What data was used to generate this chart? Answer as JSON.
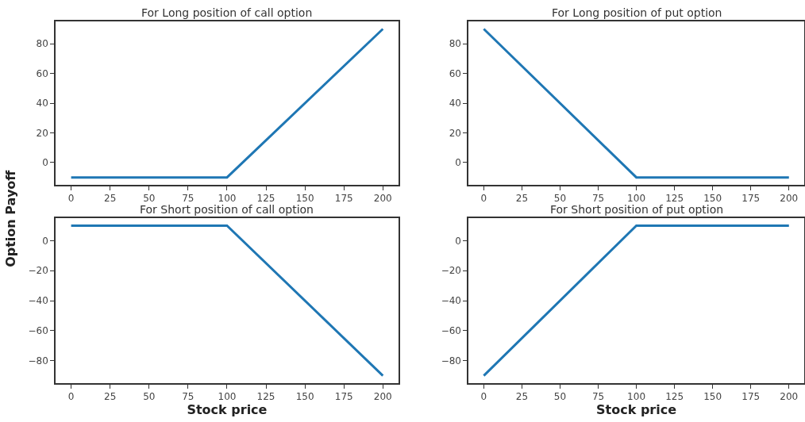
{
  "chart_data": [
    {
      "type": "line",
      "title": "For Long position of call option",
      "x": [
        0,
        100,
        200
      ],
      "series": [
        {
          "color": "#1f77b4",
          "values": [
            -10,
            -10,
            90
          ]
        }
      ],
      "xlim": [
        -10,
        210
      ],
      "xticks": [
        0,
        25,
        50,
        75,
        100,
        125,
        150,
        175,
        200
      ],
      "ylim": [
        -15,
        95
      ],
      "yticks": [
        0,
        20,
        40,
        60,
        80
      ],
      "marker": "none",
      "line_style": "solid"
    },
    {
      "type": "line",
      "title": "For Long position of put option",
      "x": [
        0,
        100,
        200
      ],
      "series": [
        {
          "color": "#1f77b4",
          "values": [
            90,
            -10,
            -10
          ]
        }
      ],
      "xlim": [
        -10,
        210
      ],
      "xticks": [
        0,
        25,
        50,
        75,
        100,
        125,
        150,
        175,
        200
      ],
      "ylim": [
        -15,
        95
      ],
      "yticks": [
        0,
        20,
        40,
        60,
        80
      ],
      "marker": "none",
      "line_style": "solid"
    },
    {
      "type": "line",
      "title": "For Short position of call option",
      "xlabel": "Stock price",
      "ylabel": "Option Payoff",
      "x": [
        0,
        100,
        200
      ],
      "series": [
        {
          "color": "#1f77b4",
          "values": [
            10,
            10,
            -90
          ]
        }
      ],
      "xlim": [
        -10,
        210
      ],
      "xticks": [
        0,
        25,
        50,
        75,
        100,
        125,
        150,
        175,
        200
      ],
      "ylim": [
        -95,
        15
      ],
      "yticks": [
        {
          "value": -80,
          "label": "−80"
        },
        {
          "value": -60,
          "label": "−60"
        },
        {
          "value": -40,
          "label": "−40"
        },
        {
          "value": -20,
          "label": "−20"
        },
        0
      ],
      "marker": "none",
      "line_style": "solid"
    },
    {
      "type": "line",
      "title": "For Short position of put option",
      "xlabel": "Stock price",
      "x": [
        0,
        100,
        200
      ],
      "series": [
        {
          "color": "#1f77b4",
          "values": [
            -90,
            10,
            10
          ]
        }
      ],
      "xlim": [
        -10,
        210
      ],
      "xticks": [
        0,
        25,
        50,
        75,
        100,
        125,
        150,
        175,
        200
      ],
      "ylim": [
        -95,
        15
      ],
      "yticks": [
        {
          "value": -80,
          "label": "−80"
        },
        {
          "value": -60,
          "label": "−60"
        },
        {
          "value": -40,
          "label": "−40"
        },
        {
          "value": -20,
          "label": "−20"
        },
        0
      ],
      "marker": "none",
      "line_style": "solid"
    }
  ]
}
